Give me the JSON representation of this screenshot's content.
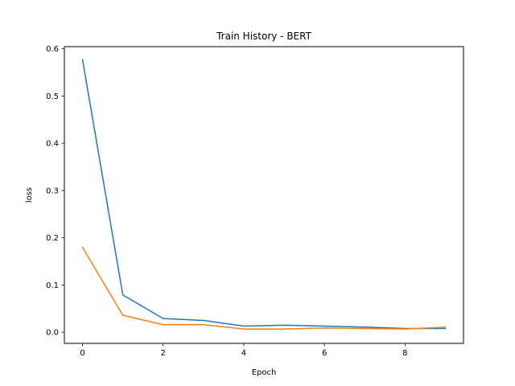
{
  "chart_data": {
    "type": "line",
    "title": "Train History - BERT",
    "xlabel": "Epoch",
    "ylabel": "loss",
    "x": [
      0,
      1,
      2,
      3,
      4,
      5,
      6,
      7,
      8,
      9
    ],
    "xlim": [
      -0.45,
      9.45
    ],
    "ylim": [
      -0.0235,
      0.6045
    ],
    "xticks": [
      0,
      2,
      4,
      6,
      8
    ],
    "xtick_labels": [
      "0",
      "2",
      "4",
      "6",
      "8"
    ],
    "yticks": [
      0.0,
      0.1,
      0.2,
      0.3,
      0.4,
      0.5,
      0.6
    ],
    "ytick_labels": [
      "0.0",
      "0.1",
      "0.2",
      "0.3",
      "0.4",
      "0.5",
      "0.6"
    ],
    "grid": false,
    "series": [
      {
        "values": [
          0.577,
          0.079,
          0.029,
          0.025,
          0.013,
          0.015,
          0.013,
          0.011,
          0.008,
          0.008
        ],
        "color": "#1f77b4"
      },
      {
        "values": [
          0.18,
          0.036,
          0.016,
          0.016,
          0.007,
          0.007,
          0.009,
          0.008,
          0.007,
          0.011
        ],
        "color": "#ff7f0e"
      }
    ]
  }
}
